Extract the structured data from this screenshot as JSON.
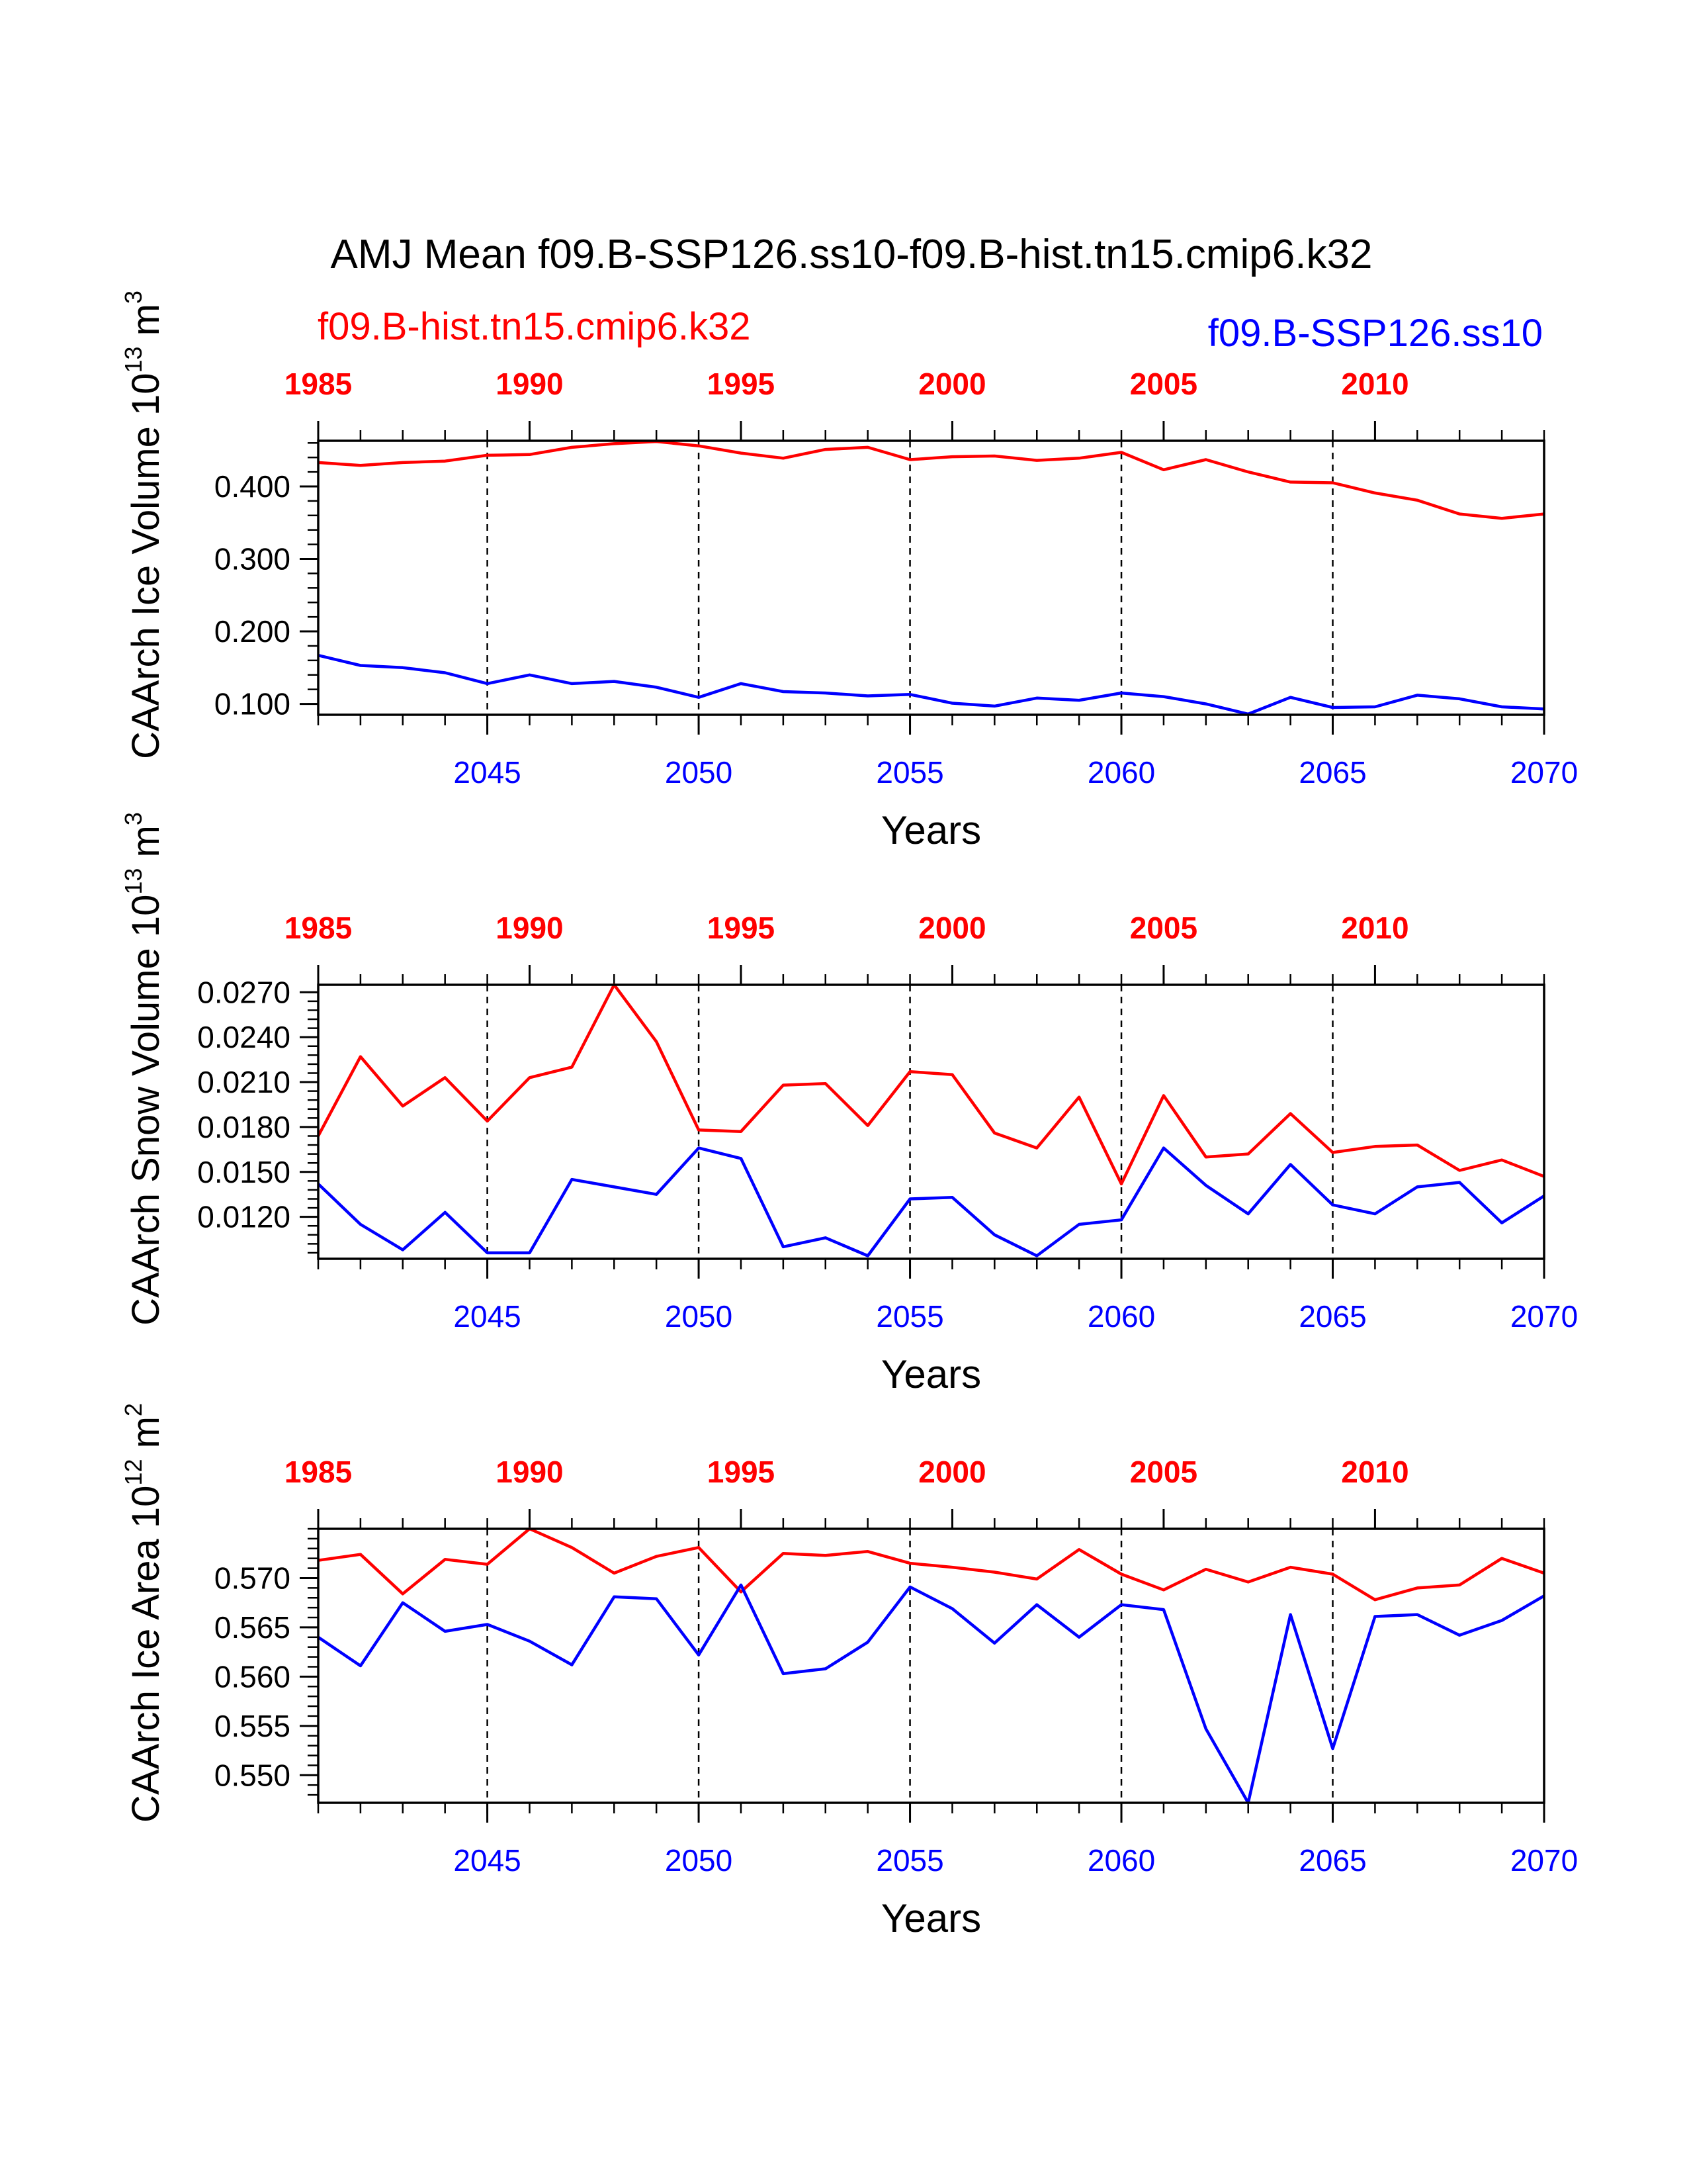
{
  "title": "AMJ Mean f09.B-SSP126.ss10-f09.B-hist.tn15.cmip6.k32",
  "legend": {
    "left": "f09.B-hist.tn15.cmip6.k32",
    "right": "f09.B-SSP126.ss10"
  },
  "colors": {
    "hist": "#ff0000",
    "ssp": "#0000ff",
    "axis": "#000000"
  },
  "chart_data": [
    {
      "type": "line",
      "ylabel_main": "CAArch Ice Volume 10",
      "ylabel_exp": "13",
      "ylabel_unit": " m",
      "ylabel_unit_exp": "3",
      "xlabel": "Years",
      "ylim": [
        0.085,
        0.463
      ],
      "ymajor": [
        0.1,
        0.2,
        0.3,
        0.4
      ],
      "ytick_labels": [
        "0.100",
        "0.200",
        "0.300",
        "0.400"
      ],
      "yminor_step": 0.02,
      "bottom_ticks": [
        "2045",
        "2050",
        "2055",
        "2060",
        "2065",
        "2070"
      ],
      "top_ticks": [
        "1985",
        "1990",
        "1995",
        "2000",
        "2005",
        "2010"
      ],
      "x_bottom": [
        2041,
        2042,
        2043,
        2044,
        2045,
        2046,
        2047,
        2048,
        2049,
        2050,
        2051,
        2052,
        2053,
        2054,
        2055,
        2056,
        2057,
        2058,
        2059,
        2060,
        2061,
        2062,
        2063,
        2064,
        2065,
        2066,
        2067,
        2068,
        2069,
        2070
      ],
      "x_top": [
        1985,
        1986,
        1987,
        1988,
        1989,
        1990,
        1991,
        1992,
        1993,
        1994,
        1995,
        1996,
        1997,
        1998,
        1999,
        2000,
        2001,
        2002,
        2003,
        2004,
        2005,
        2006,
        2007,
        2008,
        2009,
        2010,
        2011,
        2012,
        2013,
        2014
      ],
      "series": [
        {
          "name": "f09.B-hist.tn15.cmip6.k32",
          "color": "#ff0000",
          "values": [
            0.433,
            0.429,
            0.433,
            0.435,
            0.443,
            0.444,
            0.454,
            0.459,
            0.462,
            0.456,
            0.446,
            0.439,
            0.451,
            0.454,
            0.437,
            0.441,
            0.442,
            0.436,
            0.439,
            0.447,
            0.423,
            0.437,
            0.42,
            0.406,
            0.405,
            0.391,
            0.381,
            0.362,
            0.356,
            0.362
          ]
        },
        {
          "name": "f09.B-SSP126.ss10",
          "color": "#0000ff",
          "values": [
            0.167,
            0.153,
            0.15,
            0.143,
            0.128,
            0.14,
            0.128,
            0.131,
            0.123,
            0.109,
            0.128,
            0.117,
            0.115,
            0.111,
            0.113,
            0.101,
            0.097,
            0.108,
            0.105,
            0.115,
            0.11,
            0.1,
            0.086,
            0.109,
            0.095,
            0.096,
            0.112,
            0.107,
            0.096,
            0.093
          ]
        }
      ]
    },
    {
      "type": "line",
      "ylabel_main": "CAArch Snow Volume 10",
      "ylabel_exp": "13",
      "ylabel_unit": " m",
      "ylabel_unit_exp": "3",
      "xlabel": "Years",
      "ylim": [
        0.0092,
        0.0275
      ],
      "ymajor": [
        0.012,
        0.015,
        0.018,
        0.021,
        0.024,
        0.027
      ],
      "ytick_labels": [
        "0.0120",
        "0.0150",
        "0.0180",
        "0.0210",
        "0.0240",
        "0.0270"
      ],
      "yminor_step": 0.0006,
      "bottom_ticks": [
        "2045",
        "2050",
        "2055",
        "2060",
        "2065",
        "2070"
      ],
      "top_ticks": [
        "1985",
        "1990",
        "1995",
        "2000",
        "2005",
        "2010"
      ],
      "x_bottom": [
        2041,
        2042,
        2043,
        2044,
        2045,
        2046,
        2047,
        2048,
        2049,
        2050,
        2051,
        2052,
        2053,
        2054,
        2055,
        2056,
        2057,
        2058,
        2059,
        2060,
        2061,
        2062,
        2063,
        2064,
        2065,
        2066,
        2067,
        2068,
        2069,
        2070
      ],
      "x_top": [
        1985,
        1986,
        1987,
        1988,
        1989,
        1990,
        1991,
        1992,
        1993,
        1994,
        1995,
        1996,
        1997,
        1998,
        1999,
        2000,
        2001,
        2002,
        2003,
        2004,
        2005,
        2006,
        2007,
        2008,
        2009,
        2010,
        2011,
        2012,
        2013,
        2014
      ],
      "series": [
        {
          "name": "f09.B-hist.tn15.cmip6.k32",
          "color": "#ff0000",
          "values": [
            0.0174,
            0.0227,
            0.0194,
            0.0213,
            0.0184,
            0.0213,
            0.022,
            0.0275,
            0.0237,
            0.0178,
            0.0177,
            0.0208,
            0.0209,
            0.0181,
            0.0217,
            0.0215,
            0.0176,
            0.0166,
            0.02,
            0.0142,
            0.0201,
            0.016,
            0.0162,
            0.0189,
            0.0163,
            0.0167,
            0.0168,
            0.0151,
            0.0158,
            0.0147
          ]
        },
        {
          "name": "f09.B-SSP126.ss10",
          "color": "#0000ff",
          "values": [
            0.0142,
            0.0115,
            0.0098,
            0.0123,
            0.0096,
            0.0096,
            0.0145,
            0.014,
            0.0135,
            0.0166,
            0.0159,
            0.01,
            0.0106,
            0.0094,
            0.0132,
            0.0133,
            0.0108,
            0.0094,
            0.0115,
            0.0118,
            0.0166,
            0.0141,
            0.0122,
            0.0155,
            0.0128,
            0.0122,
            0.014,
            0.0143,
            0.0116,
            0.0134
          ]
        }
      ]
    },
    {
      "type": "line",
      "ylabel_main": "CAArch Ice Area 10",
      "ylabel_exp": "12",
      "ylabel_unit": " m",
      "ylabel_unit_exp": "2",
      "xlabel": "Years",
      "ylim": [
        0.5472,
        0.575
      ],
      "ymajor": [
        0.55,
        0.555,
        0.56,
        0.565,
        0.57
      ],
      "ytick_labels": [
        "0.550",
        "0.555",
        "0.560",
        "0.565",
        "0.570"
      ],
      "yminor_step": 0.001,
      "bottom_ticks": [
        "2045",
        "2050",
        "2055",
        "2060",
        "2065",
        "2070"
      ],
      "top_ticks": [
        "1985",
        "1990",
        "1995",
        "2000",
        "2005",
        "2010"
      ],
      "x_bottom": [
        2041,
        2042,
        2043,
        2044,
        2045,
        2046,
        2047,
        2048,
        2049,
        2050,
        2051,
        2052,
        2053,
        2054,
        2055,
        2056,
        2057,
        2058,
        2059,
        2060,
        2061,
        2062,
        2063,
        2064,
        2065,
        2066,
        2067,
        2068,
        2069,
        2070
      ],
      "x_top": [
        1985,
        1986,
        1987,
        1988,
        1989,
        1990,
        1991,
        1992,
        1993,
        1994,
        1995,
        1996,
        1997,
        1998,
        1999,
        2000,
        2001,
        2002,
        2003,
        2004,
        2005,
        2006,
        2007,
        2008,
        2009,
        2010,
        2011,
        2012,
        2013,
        2014
      ],
      "series": [
        {
          "name": "f09.B-hist.tn15.cmip6.k32",
          "color": "#ff0000",
          "values": [
            0.5718,
            0.5724,
            0.5684,
            0.5719,
            0.5714,
            0.575,
            0.5731,
            0.5705,
            0.5722,
            0.5731,
            0.5686,
            0.5725,
            0.5723,
            0.5727,
            0.5715,
            0.5711,
            0.5706,
            0.5699,
            0.5729,
            0.5704,
            0.5688,
            0.5709,
            0.5696,
            0.5711,
            0.5704,
            0.5678,
            0.569,
            0.5693,
            0.572,
            0.5705
          ]
        },
        {
          "name": "f09.B-SSP126.ss10",
          "color": "#0000ff",
          "values": [
            0.564,
            0.5611,
            0.5675,
            0.5646,
            0.5653,
            0.5636,
            0.5612,
            0.5681,
            0.5679,
            0.5622,
            0.5693,
            0.5603,
            0.5608,
            0.5635,
            0.5691,
            0.5669,
            0.5634,
            0.5673,
            0.564,
            0.5673,
            0.5668,
            0.5547,
            0.5472,
            0.5663,
            0.5527,
            0.5661,
            0.5663,
            0.5642,
            0.5657,
            0.5682
          ]
        }
      ]
    }
  ]
}
